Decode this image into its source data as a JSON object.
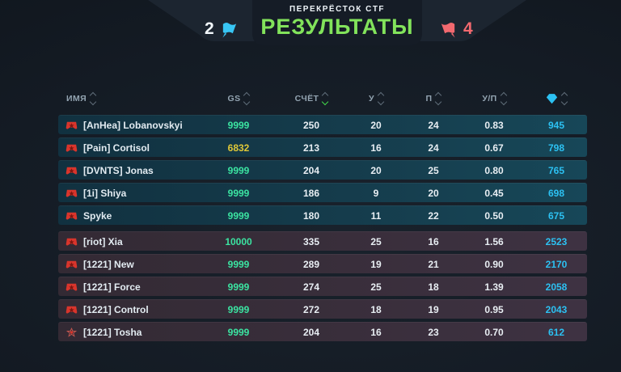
{
  "header": {
    "tournament": "ПЕРЕКРЁСТОК CTF",
    "title": "РЕЗУЛЬТАТЫ",
    "blue_score": "2",
    "red_score": "4"
  },
  "colors": {
    "title_green": "#82e35b",
    "blue_flag": "#38c6f4",
    "red_flag": "#f2696f",
    "gs_green": "#3be3a1",
    "gs_yellow": "#e0c838",
    "gems_cyan": "#2cc1f2"
  },
  "table": {
    "columns": [
      {
        "key": "name",
        "label": "ИМЯ"
      },
      {
        "key": "gs",
        "label": "GS"
      },
      {
        "key": "score",
        "label": "СЧЁТ",
        "sorted": "desc"
      },
      {
        "key": "u",
        "label": "У"
      },
      {
        "key": "p",
        "label": "П"
      },
      {
        "key": "up",
        "label": "У/П"
      },
      {
        "key": "gems",
        "label": "",
        "icon": "gem"
      }
    ],
    "blue_team": {
      "rows": [
        {
          "name": "[AnHea] Lobanovskyi",
          "gs": "9999",
          "gs_color": "gs_green",
          "score": "250",
          "u": "20",
          "p": "24",
          "up": "0.83",
          "gems": "945",
          "badge": "filled"
        },
        {
          "name": "[Pain] Cortisol",
          "gs": "6832",
          "gs_color": "gs_yellow",
          "score": "213",
          "u": "16",
          "p": "24",
          "up": "0.67",
          "gems": "798",
          "badge": "filled"
        },
        {
          "name": "[DVNTS] Jonas",
          "gs": "9999",
          "gs_color": "gs_green",
          "score": "204",
          "u": "20",
          "p": "25",
          "up": "0.80",
          "gems": "765",
          "badge": "filled"
        },
        {
          "name": "[1i] Shiya",
          "gs": "9999",
          "gs_color": "gs_green",
          "score": "186",
          "u": "9",
          "p": "20",
          "up": "0.45",
          "gems": "698",
          "badge": "filled"
        },
        {
          "name": "Spyke",
          "gs": "9999",
          "gs_color": "gs_green",
          "score": "180",
          "u": "11",
          "p": "22",
          "up": "0.50",
          "gems": "675",
          "badge": "filled"
        }
      ]
    },
    "red_team": {
      "rows": [
        {
          "name": "[riot] Xia",
          "gs": "10000",
          "gs_color": "gs_green",
          "score": "335",
          "u": "25",
          "p": "16",
          "up": "1.56",
          "gems": "2523",
          "badge": "filled"
        },
        {
          "name": "[1221] New",
          "gs": "9999",
          "gs_color": "gs_green",
          "score": "289",
          "u": "19",
          "p": "21",
          "up": "0.90",
          "gems": "2170",
          "badge": "filled"
        },
        {
          "name": "[1221] Force",
          "gs": "9999",
          "gs_color": "gs_green",
          "score": "274",
          "u": "25",
          "p": "18",
          "up": "1.39",
          "gems": "2058",
          "badge": "filled"
        },
        {
          "name": "[1221] Control",
          "gs": "9999",
          "gs_color": "gs_green",
          "score": "272",
          "u": "18",
          "p": "19",
          "up": "0.95",
          "gems": "2043",
          "badge": "filled"
        },
        {
          "name": "[1221] Tosha",
          "gs": "9999",
          "gs_color": "gs_green",
          "score": "204",
          "u": "16",
          "p": "23",
          "up": "0.70",
          "gems": "612",
          "badge": "outline"
        }
      ]
    }
  }
}
